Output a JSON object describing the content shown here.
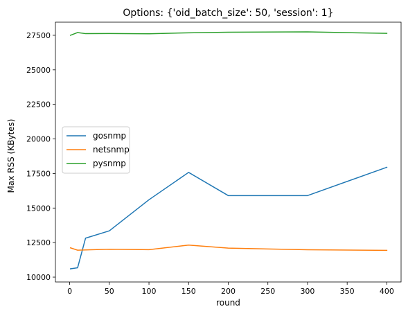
{
  "chart_data": {
    "type": "line",
    "title": "Options: {'oid_batch_size': 50, 'session': 1}",
    "xlabel": "round",
    "ylabel": "Max RSS (KBytes)",
    "xlim": [
      -18,
      418
    ],
    "ylim": [
      9650,
      28450
    ],
    "xticks": [
      0,
      50,
      100,
      150,
      200,
      250,
      300,
      350,
      400
    ],
    "xtick_labels": [
      "0",
      "50",
      "100",
      "150",
      "200",
      "250",
      "300",
      "350",
      "400"
    ],
    "yticks": [
      10000,
      12500,
      15000,
      17500,
      20000,
      22500,
      25000,
      27500
    ],
    "ytick_labels": [
      "10000",
      "12500",
      "15000",
      "17500",
      "20000",
      "22500",
      "25000",
      "27500"
    ],
    "grid": false,
    "legend_position": "center-left",
    "series": [
      {
        "name": "gosnmp",
        "color": "#1f77b4",
        "x": [
          1,
          10,
          20,
          50,
          100,
          150,
          200,
          300,
          400
        ],
        "y": [
          10600,
          10680,
          12820,
          13350,
          15600,
          17580,
          15900,
          15900,
          17950
        ]
      },
      {
        "name": "netsnmp",
        "color": "#ff7f0e",
        "x": [
          1,
          10,
          20,
          50,
          100,
          150,
          200,
          300,
          400
        ],
        "y": [
          12120,
          11950,
          11970,
          12020,
          11990,
          12320,
          12100,
          11980,
          11940
        ]
      },
      {
        "name": "pysnmp",
        "color": "#2ca02c",
        "x": [
          1,
          10,
          20,
          50,
          100,
          150,
          200,
          300,
          400
        ],
        "y": [
          27500,
          27700,
          27620,
          27630,
          27610,
          27680,
          27720,
          27750,
          27640
        ]
      }
    ]
  }
}
